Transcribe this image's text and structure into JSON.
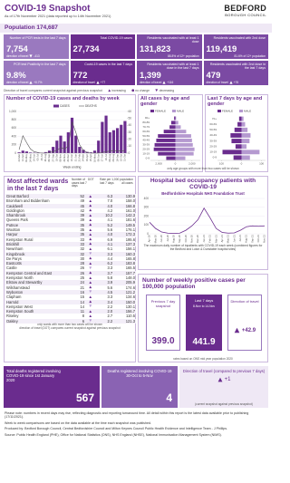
{
  "header": {
    "title": "COVID-19 Snapshot",
    "subtitle": "As of 17th November 2021 (data reported up to 14th November 2021)",
    "logo": "BEDFORD",
    "logo_sub": "BOROUGH COUNCIL",
    "population_label": "Population",
    "population": "174,687"
  },
  "tiles": [
    {
      "label": "Number of PCR tests in the last 7 days",
      "value": "7,754",
      "dot_label": "direction of travel",
      "direction": "down",
      "change": "-413"
    },
    {
      "label": "Total COVID-19 cases",
      "value": "27,734"
    },
    {
      "label": "Residents vaccinated with at least 1 dose",
      "value": "131,823",
      "note": "88.8% of 12+ population"
    },
    {
      "label": "Residents vaccinated with 2nd dose",
      "value": "119,419",
      "note": "81.6% of 12+ population"
    },
    {
      "label": "PCR test Positivity in the last 7 days",
      "value": "9.8%",
      "dot_label": "direction of travel",
      "direction": "up",
      "change": "+0.7%"
    },
    {
      "label": "Covid-19 cases in the last 7 days",
      "value": "772",
      "dot_label": "direction of travel",
      "direction": "up",
      "change": "+77"
    },
    {
      "label": "Residents vaccinated with at least 1 dose in the last 7 days",
      "value": "1,399",
      "dot_label": "direction of travel",
      "direction": "up",
      "change": "+116"
    },
    {
      "label": "Residents vaccinated with 2nd dose in the last 7 days",
      "value": "479",
      "dot_label": "direction of travel",
      "direction": "up",
      "change": "+76"
    }
  ],
  "key": {
    "text": "Direction of travel compares current snapshot against previous snapshot",
    "items": [
      {
        "label": "increasing",
        "direction": "up"
      },
      {
        "label": "no change",
        "direction": "flat"
      },
      {
        "label": "decreasing",
        "direction": "down"
      }
    ]
  },
  "chart_data": [
    {
      "type": "bar",
      "title": "Number of COVID-19 cases and deaths by week",
      "x_label": "Week ending",
      "categories": [
        "22-Mar",
        "12-Apr",
        "03-May",
        "24-May",
        "14-Jun",
        "05-Jul",
        "26-Jul",
        "16-Aug",
        "06-Sep",
        "27-Sep",
        "18-Oct",
        "08-Nov",
        "29-Nov",
        "20-Dec",
        "10-Jan",
        "31-Jan",
        "21-Feb",
        "14-Mar",
        "04-Apr",
        "25-Apr",
        "16-May",
        "06-Jun",
        "27-Jun",
        "18-Jul",
        "08-Aug",
        "29-Aug",
        "19-Sep",
        "10-Oct",
        "31-Oct"
      ],
      "series": [
        {
          "name": "CASES",
          "color": "#6a2c8e",
          "values": [
            20,
            60,
            40,
            15,
            10,
            8,
            10,
            25,
            60,
            150,
            300,
            420,
            280,
            500,
            850,
            420,
            150,
            80,
            30,
            20,
            60,
            300,
            750,
            900,
            500,
            550,
            600,
            680,
            770
          ]
        },
        {
          "name": "DEATHS",
          "color": "#555555",
          "axis": "y2",
          "type": "line",
          "values": [
            5,
            25,
            15,
            6,
            2,
            1,
            0,
            0,
            1,
            2,
            4,
            8,
            6,
            10,
            45,
            30,
            12,
            4,
            1,
            0,
            0,
            0,
            1,
            2,
            3,
            4,
            3,
            3,
            4
          ]
        }
      ],
      "ylim": [
        0,
        1000
      ],
      "yticks": [
        0,
        200,
        400,
        600,
        800,
        {
          "value": 1000,
          "label": "1,000"
        }
      ],
      "y2lim": [
        0,
        60
      ],
      "y2ticks": [
        0,
        10,
        20,
        30,
        40,
        50,
        60
      ]
    },
    {
      "type": "pyramid",
      "title": "All cases by age and gender",
      "categories": [
        "90+",
        "80-89",
        "70-79",
        "60-69",
        "50-59",
        "40-49",
        "30-39",
        "20-29",
        "10-19",
        "0-9"
      ],
      "series": [
        {
          "name": "FEMALE",
          "color": "#6a2c8e",
          "side": "left",
          "values": [
            150,
            500,
            700,
            1400,
            2100,
            2300,
            2500,
            2600,
            2100,
            1100
          ]
        },
        {
          "name": "MALE",
          "color": "#b59ad0",
          "side": "right",
          "values": [
            90,
            350,
            650,
            1300,
            1900,
            2000,
            2100,
            2300,
            2200,
            1200
          ]
        }
      ],
      "xlim": [
        0,
        3000
      ],
      "xticks": [
        0,
        {
          "value": 2000,
          "label": "2,000"
        }
      ]
    },
    {
      "type": "pyramid",
      "title": "Last 7 days by age and gender",
      "note": "only age groups with more than two cases will be shown",
      "categories": [
        "70+",
        "60-69",
        "50-59",
        "40-49",
        "30-39",
        "20-29",
        "10-19",
        "0-9"
      ],
      "series": [
        {
          "name": "FEMALE",
          "color": "#6a2c8e",
          "side": "left",
          "values": [
            12,
            20,
            35,
            55,
            50,
            30,
            95,
            40
          ]
        },
        {
          "name": "MALE",
          "color": "#b59ad0",
          "side": "right",
          "values": [
            10,
            18,
            30,
            45,
            40,
            25,
            90,
            42
          ]
        }
      ],
      "xlim": [
        0,
        120
      ],
      "xticks": [
        0,
        100
      ]
    },
    {
      "type": "line",
      "title": "Hospital bed occupancy patients with COVID-19",
      "subtitle": "Bedfordshire Hospitals NHS Foundation Trust",
      "note": "The maximum daily number of inpatients with COVID-19 each week (combined figures for the Bedford and Luton & Dunstable hospital sites)",
      "categories": [
        "Apr-20",
        "May-20",
        "Jun-20",
        "Jul-20",
        "Aug-20",
        "Sep-20",
        "Oct-20",
        "Nov-20",
        "Dec-20",
        "Jan-21",
        "Feb-21",
        "Mar-21",
        "Apr-21",
        "May-21",
        "Jun-21",
        "Jul-21",
        "Aug-21",
        "Sep-21",
        "Oct-21",
        "Nov-21"
      ],
      "series": [
        {
          "color": "#6a2c8e",
          "values": [
            130,
            60,
            20,
            8,
            5,
            8,
            40,
            90,
            160,
            290,
            180,
            60,
            15,
            8,
            10,
            40,
            80,
            90,
            85,
            90
          ]
        }
      ],
      "ylim": [
        0,
        400
      ],
      "yticks": [
        0,
        100,
        200,
        300,
        400
      ]
    }
  ],
  "wards": {
    "title": "Most affected wards in the last 7 days",
    "header_cases": "Number of cases last 7 days",
    "header_dot": "DOT",
    "header_rate": "Rate per 1,000 population",
    "subheaders": [
      "last 7 days",
      "all cases"
    ],
    "rows": [
      {
        "ward": "Great Barford",
        "cases": "52",
        "direction": "up",
        "rate_7d": "6.3",
        "rate_all": "130.9"
      },
      {
        "ward": "Bromham and Biddenham",
        "cases": "49",
        "direction": "up",
        "rate_7d": "7.0",
        "rate_all": "158.0"
      },
      {
        "ward": "Cauldwell",
        "cases": "45",
        "direction": "up",
        "rate_7d": "4.0",
        "rate_all": "166.8"
      },
      {
        "ward": "Goldington",
        "cases": "42",
        "direction": "up",
        "rate_7d": "4.2",
        "rate_all": "161.0"
      },
      {
        "ward": "Sharnbrook",
        "cases": "39",
        "direction": "up",
        "rate_7d": "10.2",
        "rate_all": "142.3"
      },
      {
        "ward": "Queens Park",
        "cases": "39",
        "direction": "up",
        "rate_7d": "4.1",
        "rate_all": "181.6"
      },
      {
        "ward": "Putnoe",
        "cases": "35",
        "direction": "up",
        "rate_7d": "5.2",
        "rate_all": "149.5"
      },
      {
        "ward": "Wootton",
        "cases": "35",
        "direction": "up",
        "rate_7d": "5.6",
        "rate_all": "176.1"
      },
      {
        "ward": "Harpur",
        "cases": "35",
        "direction": "up",
        "rate_7d": "4.0",
        "rate_all": "172.3"
      },
      {
        "ward": "Kempston Rural",
        "cases": "33",
        "direction": "up",
        "rate_7d": "6.9",
        "rate_all": "195.6"
      },
      {
        "ward": "Brickhill",
        "cases": "33",
        "direction": "up",
        "rate_7d": "4.1",
        "rate_all": "137.3"
      },
      {
        "ward": "Newnham",
        "cases": "32",
        "direction": "up",
        "rate_7d": "6.1",
        "rate_all": "156.1"
      },
      {
        "ward": "Kingsbrook",
        "cases": "32",
        "direction": "down",
        "rate_7d": "3.3",
        "rate_all": "160.3"
      },
      {
        "ward": "De Parys",
        "cases": "30",
        "direction": "up",
        "rate_7d": "4.4",
        "rate_all": "165.8"
      },
      {
        "ward": "Eastcotts",
        "cases": "28",
        "direction": "up",
        "rate_7d": "6.2",
        "rate_all": "183.8"
      },
      {
        "ward": "Castle",
        "cases": "26",
        "direction": "down",
        "rate_7d": "3.3",
        "rate_all": "165.5"
      },
      {
        "ward": "Kempston Central and East",
        "cases": "26",
        "direction": "up",
        "rate_7d": "3.7",
        "rate_all": "157.7"
      },
      {
        "ward": "Kempston North",
        "cases": "25",
        "direction": "up",
        "rate_7d": "5.8",
        "rate_all": "148.0"
      },
      {
        "ward": "Elstow and Stewartby",
        "cases": "24",
        "direction": "up",
        "rate_7d": "3.9",
        "rate_all": "205.9"
      },
      {
        "ward": "Wilshamstead",
        "cases": "21",
        "direction": "up",
        "rate_7d": "5.6",
        "rate_all": "174.6"
      },
      {
        "ward": "Wyboston",
        "cases": "16",
        "direction": "down",
        "rate_7d": "4.5",
        "rate_all": "121.2"
      },
      {
        "ward": "Clapham",
        "cases": "15",
        "direction": "up",
        "rate_7d": "3.3",
        "rate_all": "134.6"
      },
      {
        "ward": "Harrold",
        "cases": "14",
        "direction": "up",
        "rate_7d": "3.4",
        "rate_all": "150.0"
      },
      {
        "ward": "Kempston West",
        "cases": "14",
        "direction": "down",
        "rate_7d": "2.2",
        "rate_all": "130.1"
      },
      {
        "ward": "Kempston South",
        "cases": "11",
        "direction": "up",
        "rate_7d": "2.0",
        "rate_all": "156.7"
      },
      {
        "ward": "Riseley",
        "cases": "8",
        "direction": "up",
        "rate_7d": "2.7",
        "rate_all": "110.5"
      },
      {
        "ward": "Oakley",
        "cases": "6",
        "direction": "down",
        "rate_7d": "2.2",
        "rate_all": "121.3"
      }
    ],
    "notes": [
      "only wards with more than two cases will be shown",
      "direction of travel (DOT) compares current snapshot against previous snapshot"
    ]
  },
  "rates": {
    "title": "Number of weekly positive cases per 100,000 population",
    "previous_label": "Previous 7 day snapshot",
    "previous": "399.0",
    "last_label": "Last 7 days",
    "last_period": "8-Nov to 14-Nov",
    "last": "441.9",
    "dot_label": "Direction of travel",
    "direction": "up",
    "change": "+42.9",
    "note": "rates based on ONS mid year population 2020"
  },
  "deaths": {
    "total_label": "Total deaths registered involving COVID-19 since 1st January 2020",
    "total": "567",
    "week_label": "Deaths registered involving COVID-19 30-Oct to 5-Nov",
    "week": "4",
    "dot_label": "Direction of travel (compared to previous 7 days)",
    "direction": "up",
    "change": "+1",
    "note": "(current snapshot against previous snapshot)"
  },
  "footer": [
    "Please note: numbers in recent days may rise, reflecting diagnostic and reporting turnaround time. All detail within this report is the latest data available prior to publishing (17/11/2021).",
    "Week to week comparisons are based on the data available at the time each snapshot was published.",
    "Produced by: Bedford Borough Council, Central Bedfordshire Council and Milton Keynes Council Public Health Evidence and Intelligence Team - J Phillips.",
    "Source: Public Health England (PHE), Office for National Statistics (ONS), NHS England (NHSE), National Immunisation Management System (NIMS)."
  ]
}
